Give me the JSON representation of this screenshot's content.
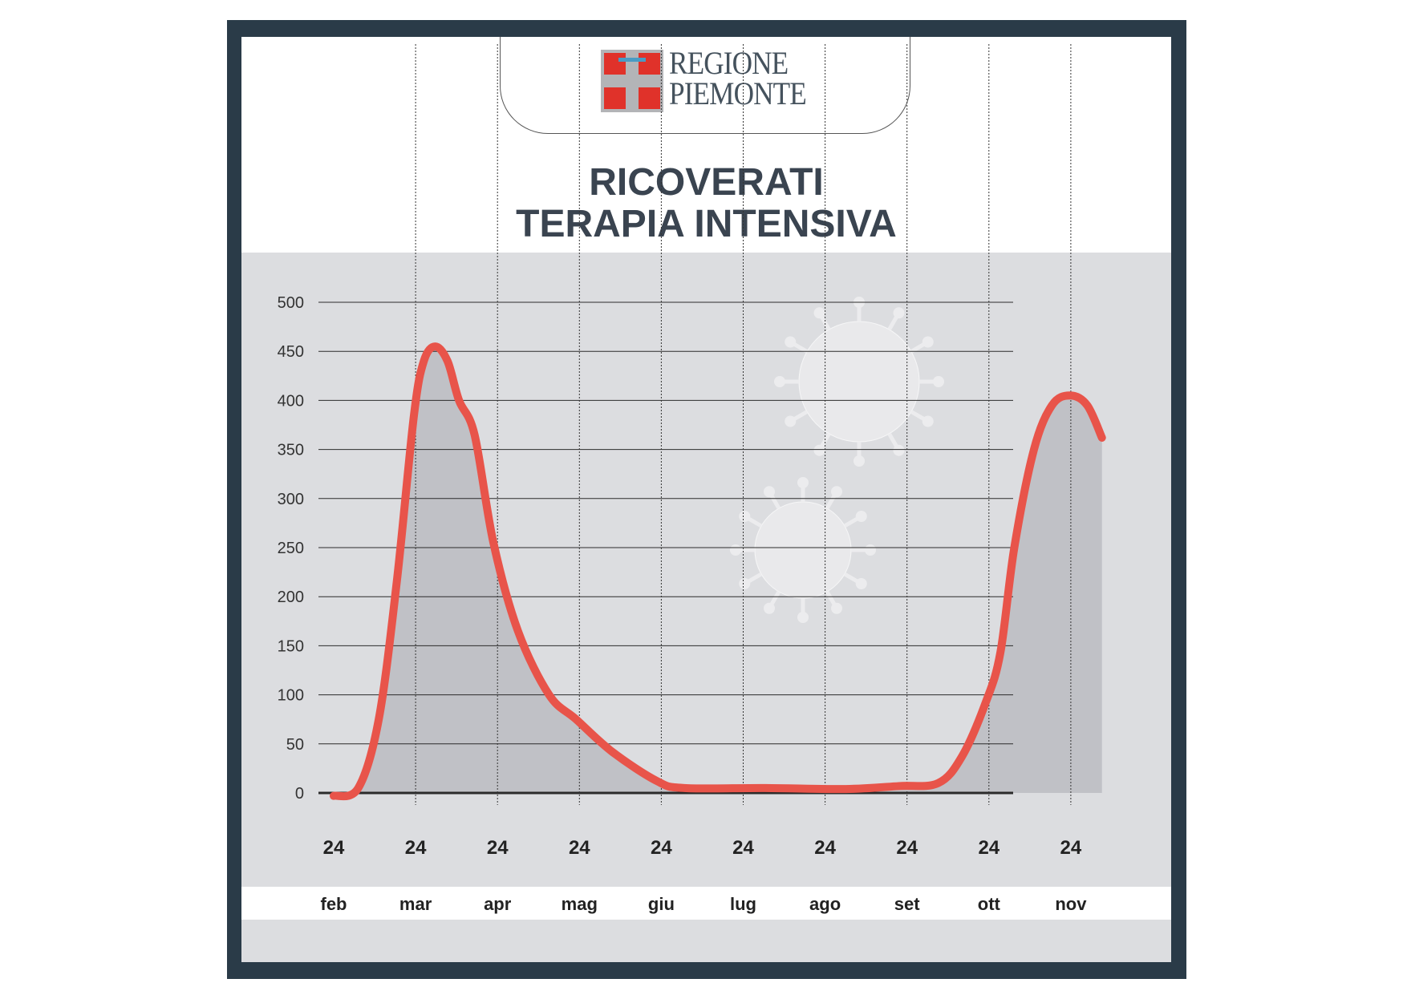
{
  "logo": {
    "line1": "REGIONE",
    "line2": "PIEMONTE"
  },
  "chart_data": {
    "type": "area",
    "title": "RICOVERATI TERAPIA INTENSIVA",
    "title_lines": [
      "RICOVERATI",
      "TERAPIA INTENSIVA"
    ],
    "xlabel": "",
    "ylabel": "",
    "ylim": [
      0,
      500
    ],
    "yticks": [
      "0",
      "50",
      "100",
      "150",
      "200",
      "250",
      "300",
      "350",
      "400",
      "450",
      "500"
    ],
    "xticks": [
      {
        "day": "24",
        "month": "feb"
      },
      {
        "day": "24",
        "month": "mar"
      },
      {
        "day": "24",
        "month": "apr"
      },
      {
        "day": "24",
        "month": "mag"
      },
      {
        "day": "24",
        "month": "giu"
      },
      {
        "day": "24",
        "month": "lug"
      },
      {
        "day": "24",
        "month": "ago"
      },
      {
        "day": "24",
        "month": "set"
      },
      {
        "day": "24",
        "month": "ott"
      },
      {
        "day": "24",
        "month": "nov"
      }
    ],
    "x_unit": "months since 24 feb",
    "points": [
      [
        0,
        -3
      ],
      [
        0.3,
        5
      ],
      [
        0.55,
        75
      ],
      [
        0.77,
        215
      ],
      [
        0.98,
        385
      ],
      [
        1.1,
        440
      ],
      [
        1.24,
        455
      ],
      [
        1.39,
        440
      ],
      [
        1.53,
        400
      ],
      [
        1.72,
        365
      ],
      [
        1.95,
        255
      ],
      [
        2.25,
        165
      ],
      [
        2.63,
        100
      ],
      [
        2.96,
        75
      ],
      [
        3.4,
        42
      ],
      [
        3.95,
        12
      ],
      [
        4.28,
        5
      ],
      [
        5.27,
        5
      ],
      [
        6.25,
        4
      ],
      [
        6.9,
        7
      ],
      [
        7.38,
        10
      ],
      [
        7.67,
        37
      ],
      [
        7.96,
        92
      ],
      [
        8.14,
        143
      ],
      [
        8.31,
        250
      ],
      [
        8.55,
        350
      ],
      [
        8.77,
        395
      ],
      [
        8.99,
        405
      ],
      [
        9.2,
        395
      ],
      [
        9.38,
        362
      ]
    ],
    "colors": {
      "line": "#e8544a",
      "fill": "#c0c1c6",
      "grid": "#2b2b2b"
    },
    "grid": true
  }
}
